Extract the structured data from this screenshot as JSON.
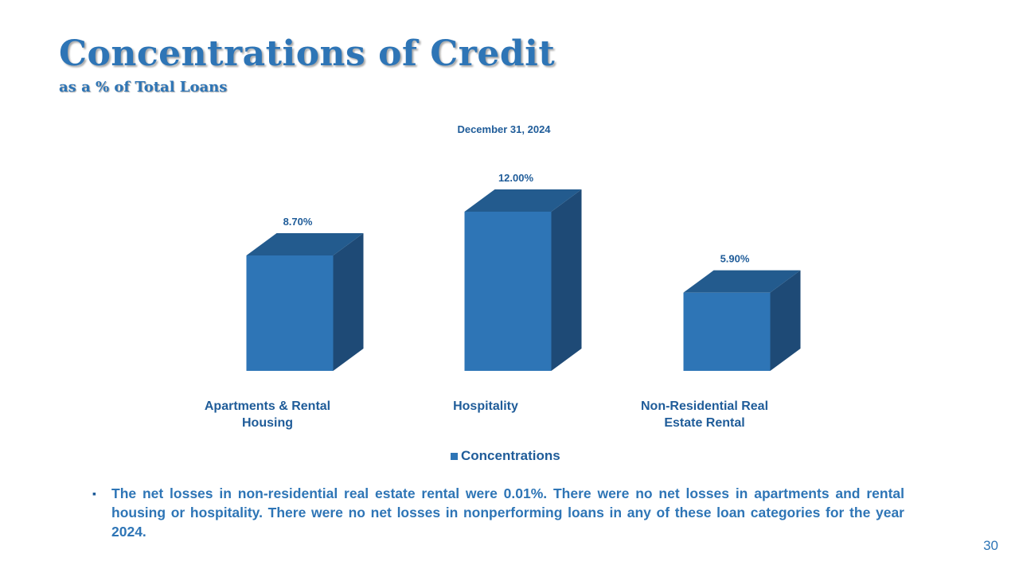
{
  "slide": {
    "title": "Concentrations of Credit",
    "subtitle": "as a % of Total Loans",
    "note": "The net losses in non-residential real estate rental were 0.01%.  There were no net losses in apartments and rental housing or hospitality.  There were no net losses in nonperforming loans in any of these loan categories for the year 2024.",
    "bullet": "▪",
    "page_number": "30"
  },
  "chart_data": {
    "type": "bar",
    "title": "December 31, 2024",
    "categories": [
      [
        "Apartments & Rental",
        "Housing"
      ],
      [
        "Hospitality"
      ],
      [
        "Non-Residential Real",
        "Estate Rental"
      ]
    ],
    "series": [
      {
        "name": "Concentrations",
        "values": [
          8.7,
          12.0,
          5.9
        ],
        "labels": [
          "8.70%",
          "12.00%",
          "5.90%"
        ]
      }
    ],
    "value_suffix": "%",
    "ylim": [
      0,
      12
    ],
    "grid": false,
    "legend_position": "bottom",
    "bar_style": "3d",
    "colors": {
      "front": "#2E75B6",
      "top": "#235B8E",
      "side": "#1E4A76",
      "text": "#1F5C99"
    }
  }
}
